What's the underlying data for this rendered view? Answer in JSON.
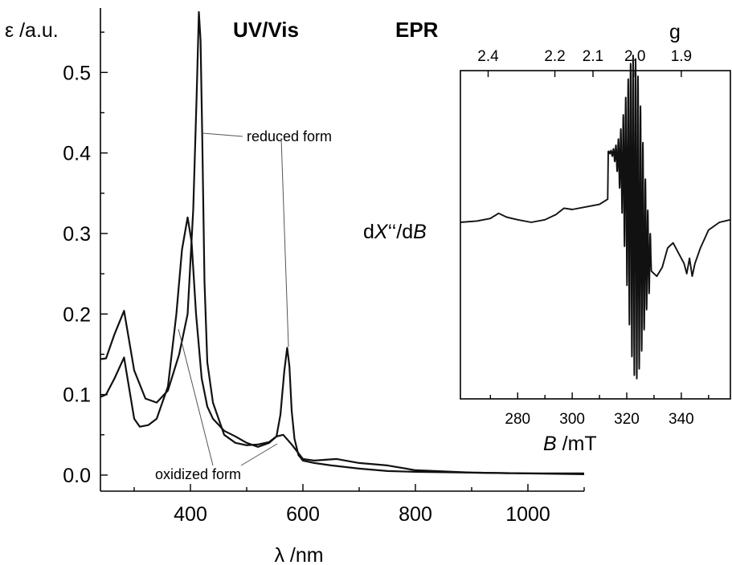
{
  "chart_data": [
    {
      "type": "line",
      "title": "UV/Vis",
      "xlabel": "λ /nm",
      "ylabel": "ε /a.u.",
      "xlim": [
        240,
        1100
      ],
      "ylim": [
        -0.02,
        0.58
      ],
      "x_ticks": [
        400,
        600,
        800,
        1000
      ],
      "x_tick_labels": [
        "400",
        "600",
        "800",
        "1000"
      ],
      "y_ticks": [
        0.0,
        0.1,
        0.2,
        0.3,
        0.4,
        0.5
      ],
      "y_tick_labels": [
        "0.0",
        "0.1",
        "0.2",
        "0.3",
        "0.4",
        "0.5"
      ],
      "grid": false,
      "series": [
        {
          "name": "reduced form",
          "x": [
            240,
            250,
            265,
            282,
            300,
            320,
            340,
            360,
            380,
            395,
            405,
            411,
            415,
            418,
            421,
            425,
            430,
            440,
            460,
            480,
            500,
            520,
            540,
            553,
            560,
            567,
            572,
            576,
            580,
            585,
            592,
            600,
            620,
            650,
            700,
            750,
            800,
            900,
            1000,
            1100
          ],
          "y": [
            0.144,
            0.145,
            0.175,
            0.204,
            0.13,
            0.095,
            0.09,
            0.105,
            0.15,
            0.2,
            0.33,
            0.47,
            0.575,
            0.54,
            0.42,
            0.24,
            0.14,
            0.09,
            0.05,
            0.04,
            0.037,
            0.038,
            0.041,
            0.048,
            0.075,
            0.13,
            0.158,
            0.135,
            0.08,
            0.045,
            0.025,
            0.018,
            0.015,
            0.012,
            0.008,
            0.005,
            0.004,
            0.003,
            0.002,
            0.001
          ]
        },
        {
          "name": "oxidized form",
          "x": [
            240,
            250,
            265,
            282,
            300,
            310,
            325,
            340,
            360,
            375,
            385,
            395,
            402,
            410,
            420,
            430,
            440,
            460,
            480,
            500,
            520,
            540,
            553,
            565,
            580,
            600,
            620,
            660,
            700,
            750,
            800,
            900,
            1000,
            1100
          ],
          "y": [
            0.097,
            0.1,
            0.12,
            0.146,
            0.07,
            0.06,
            0.062,
            0.07,
            0.11,
            0.2,
            0.28,
            0.32,
            0.29,
            0.2,
            0.12,
            0.085,
            0.07,
            0.055,
            0.048,
            0.04,
            0.035,
            0.04,
            0.048,
            0.05,
            0.038,
            0.02,
            0.018,
            0.02,
            0.015,
            0.012,
            0.006,
            0.003,
            0.002,
            0.002
          ]
        }
      ],
      "annotations": [
        "reduced form",
        "oxidized form"
      ]
    },
    {
      "type": "line",
      "title": "EPR",
      "xlabel": "B /mT",
      "ylabel": "dX‘‘/dB",
      "ylabel_parts": [
        "d",
        "X",
        "‘‘/d",
        "B"
      ],
      "xlabel_parts": [
        "B",
        " /mT"
      ],
      "xlim": [
        259,
        358
      ],
      "x_ticks": [
        280,
        300,
        320,
        340
      ],
      "x_tick_labels": [
        "280",
        "300",
        "320",
        "340"
      ],
      "top_axis_label": "g",
      "top_axis_ticks": [
        "2.4",
        "2.2",
        "2.1",
        "2.0",
        "1.9"
      ],
      "top_axis_tick_g": [
        2.4,
        2.2,
        2.1,
        2.0,
        1.9
      ],
      "ylim": [
        -1.6,
        1.4
      ],
      "series": [
        {
          "name": "",
          "x": [
            259,
            265,
            270,
            273,
            276,
            280,
            285,
            290,
            294,
            297,
            300,
            305,
            310,
            313
          ],
          "y": [
            0.0,
            0.01,
            0.03,
            0.07,
            0.04,
            0.02,
            0.0,
            0.02,
            0.06,
            0.11,
            0.1,
            0.12,
            0.14,
            0.18
          ]
        },
        {
          "name": "",
          "x": [
            329,
            331,
            333,
            335,
            337,
            339,
            341,
            342,
            343,
            344,
            345,
            347,
            350,
            354,
            358
          ],
          "y": [
            -0.38,
            -0.42,
            -0.35,
            -0.2,
            -0.16,
            -0.24,
            -0.32,
            -0.4,
            -0.28,
            -0.42,
            -0.32,
            -0.2,
            -0.06,
            0.0,
            0.02
          ]
        }
      ],
      "hyperfine": {
        "center_B": 323.0,
        "spacing_B": 0.9,
        "lines": 15,
        "max_amplitude": 1.25,
        "width_B": 4.2
      }
    }
  ]
}
